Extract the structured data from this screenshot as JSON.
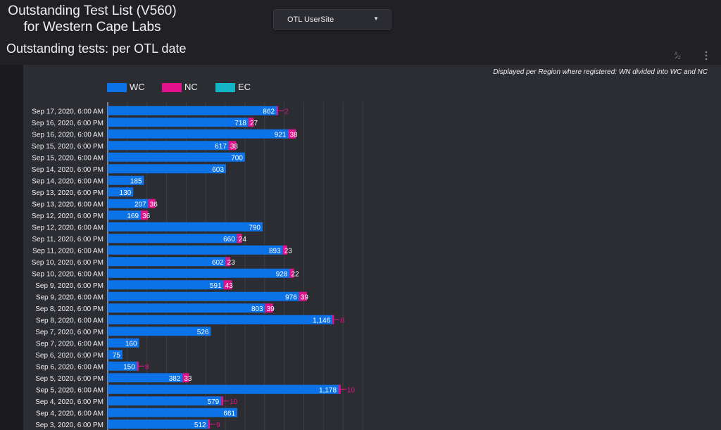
{
  "header": {
    "title_line1": "Outstanding Test List (V560)",
    "title_line2": "for Western Cape Labs",
    "dropdown_value": "OTL UserSite",
    "section_title": "Outstanding tests: per OTL date",
    "sort_icon": "sort-az-icon",
    "menu_icon": "more-vert-icon"
  },
  "panel": {
    "note": "Displayed per Region where registered: WN divided into WC and NC"
  },
  "colors": {
    "WC": "#0b72e8",
    "NC": "#e2118c",
    "EC": "#13b4c4",
    "background": "#212125",
    "panel": "#2c2d33"
  },
  "chart_data": {
    "type": "bar",
    "orientation": "horizontal",
    "stacked": true,
    "legend": [
      "WC",
      "NC",
      "EC"
    ],
    "legend_position": "top-left",
    "grid": true,
    "xlim": [
      0,
      1300
    ],
    "categories": [
      "Sep 17, 2020, 6:00 AM",
      "Sep 16, 2020, 6:00 PM",
      "Sep 16, 2020, 6:00 AM",
      "Sep 15, 2020, 6:00 PM",
      "Sep 15, 2020, 6:00 AM",
      "Sep 14, 2020, 6:00 PM",
      "Sep 14, 2020, 6:00 AM",
      "Sep 13, 2020, 6:00 PM",
      "Sep 13, 2020, 6:00 AM",
      "Sep 12, 2020, 6:00 PM",
      "Sep 12, 2020, 6:00 AM",
      "Sep 11, 2020, 6:00 PM",
      "Sep 11, 2020, 6:00 AM",
      "Sep 10, 2020, 6:00 PM",
      "Sep 10, 2020, 6:00 AM",
      "Sep 9, 2020, 6:00 PM",
      "Sep 9, 2020, 6:00 AM",
      "Sep 8, 2020, 6:00 PM",
      "Sep 8, 2020, 6:00 AM",
      "Sep 7, 2020, 6:00 PM",
      "Sep 7, 2020, 6:00 AM",
      "Sep 6, 2020, 6:00 PM",
      "Sep 6, 2020, 6:00 AM",
      "Sep 5, 2020, 6:00 PM",
      "Sep 5, 2020, 6:00 AM",
      "Sep 4, 2020, 6:00 PM",
      "Sep 4, 2020, 6:00 AM",
      "Sep 3, 2020, 6:00 PM"
    ],
    "series": [
      {
        "name": "WC",
        "values": [
          862,
          718,
          921,
          617,
          700,
          603,
          185,
          130,
          207,
          169,
          790,
          660,
          893,
          602,
          928,
          591,
          976,
          803,
          1146,
          526,
          160,
          75,
          150,
          382,
          1178,
          579,
          661,
          512
        ],
        "labels": [
          "862",
          "718",
          "921",
          "617",
          "700",
          "603",
          "185",
          "130",
          "207",
          "169",
          "790",
          "660",
          "893",
          "602",
          "928",
          "591",
          "976",
          "803",
          "1,146",
          "526",
          "160",
          "75",
          "150",
          "382",
          "1,178",
          "579",
          "661",
          "512"
        ]
      },
      {
        "name": "NC",
        "values": [
          2,
          27,
          38,
          38,
          0,
          0,
          0,
          0,
          36,
          36,
          0,
          24,
          23,
          23,
          22,
          43,
          39,
          39,
          8,
          0,
          0,
          0,
          8,
          33,
          10,
          10,
          0,
          9
        ],
        "labels": [
          "2",
          "27",
          "38",
          "38",
          "",
          "",
          "",
          "",
          "36",
          "36",
          "",
          "24",
          "23",
          "23",
          "22",
          "43",
          "39",
          "39",
          "8",
          "",
          "",
          "",
          "8",
          "33",
          "10",
          "10",
          "",
          "9"
        ]
      },
      {
        "name": "EC",
        "values": [
          0,
          0,
          0,
          0,
          0,
          0,
          0,
          0,
          0,
          0,
          0,
          0,
          0,
          0,
          0,
          0,
          0,
          0,
          0,
          0,
          0,
          0,
          0,
          0,
          0,
          0,
          0,
          0
        ],
        "labels": []
      }
    ]
  }
}
